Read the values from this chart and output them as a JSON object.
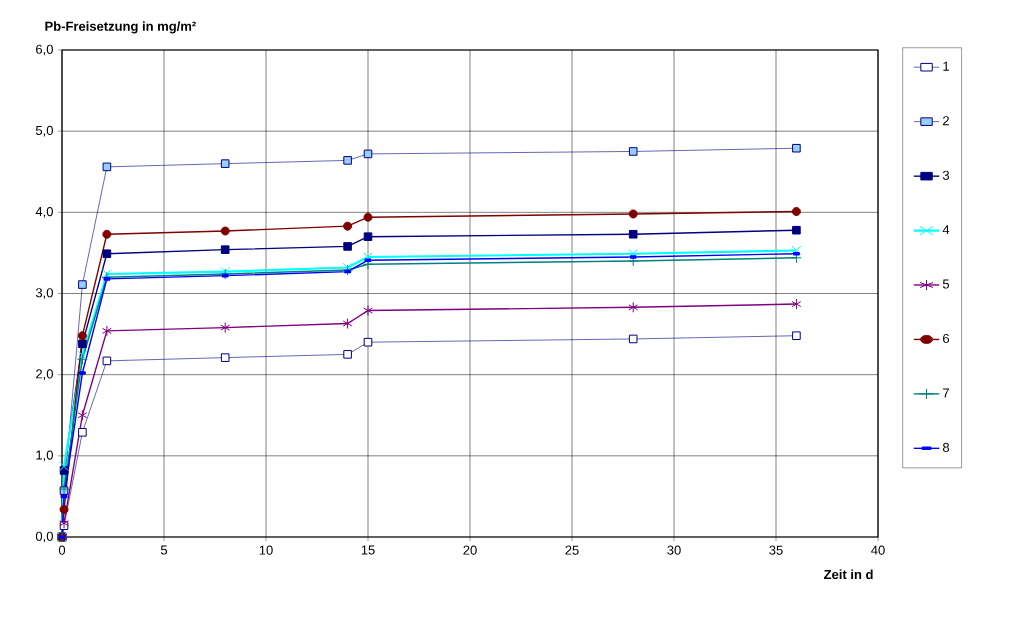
{
  "chart_data": {
    "type": "line",
    "title": "Pb-Freisetzung in mg/m²",
    "xlabel": "Zeit in d",
    "x": [
      0,
      0.1,
      1,
      2.2,
      8,
      14,
      15,
      28,
      36
    ],
    "series": [
      {
        "name": "1",
        "color": "#000080",
        "marker": "square",
        "values": [
          0,
          0.14,
          1.29,
          2.17,
          2.21,
          2.25,
          2.4,
          2.44,
          2.48
        ]
      },
      {
        "name": "2",
        "color": "#000080",
        "marker": "square",
        "values": [
          0,
          0.57,
          3.11,
          4.56,
          4.6,
          4.64,
          4.72,
          4.75,
          4.79
        ]
      },
      {
        "name": "3",
        "color": "#000080",
        "marker": "square",
        "values": [
          0,
          0.82,
          2.38,
          3.49,
          3.54,
          3.58,
          3.7,
          3.73,
          3.78
        ]
      },
      {
        "name": "4",
        "color": "#00ffff",
        "marker": "cross",
        "values": [
          0,
          0.87,
          2.24,
          3.24,
          3.27,
          3.32,
          3.45,
          3.49,
          3.53
        ]
      },
      {
        "name": "5",
        "color": "#800080",
        "marker": "cross",
        "values": [
          0,
          0.17,
          1.5,
          2.54,
          2.58,
          2.63,
          2.79,
          2.83,
          2.87
        ]
      },
      {
        "name": "6",
        "color": "#800000",
        "marker": "circle",
        "values": [
          0,
          0.34,
          2.48,
          3.73,
          3.77,
          3.83,
          3.94,
          3.98,
          4.01
        ]
      },
      {
        "name": "7",
        "color": "#008080",
        "marker": "cross",
        "values": [
          0,
          0.59,
          2.19,
          3.2,
          3.24,
          3.29,
          3.36,
          3.4,
          3.44
        ]
      },
      {
        "name": "8",
        "color": "#0000ff",
        "marker": "square",
        "values": [
          0,
          0.5,
          2.02,
          3.18,
          3.22,
          3.27,
          3.41,
          3.45,
          3.49
        ]
      }
    ],
    "xlim": [
      0,
      40
    ],
    "xticks": [
      0,
      5,
      10,
      15,
      20,
      25,
      30,
      35,
      40
    ],
    "ylim": [
      0,
      6
    ],
    "yticks": [
      {
        "value": 0,
        "label": "0,0"
      },
      {
        "value": 1,
        "label": "1,0"
      },
      {
        "value": 2,
        "label": "2,0"
      },
      {
        "value": 3,
        "label": "3,0"
      },
      {
        "value": 4,
        "label": "4,0"
      },
      {
        "value": 5,
        "label": "5,0"
      },
      {
        "value": 6,
        "label": "6,0"
      }
    ],
    "grid": true,
    "legend": "right",
    "line_style": "solid"
  }
}
